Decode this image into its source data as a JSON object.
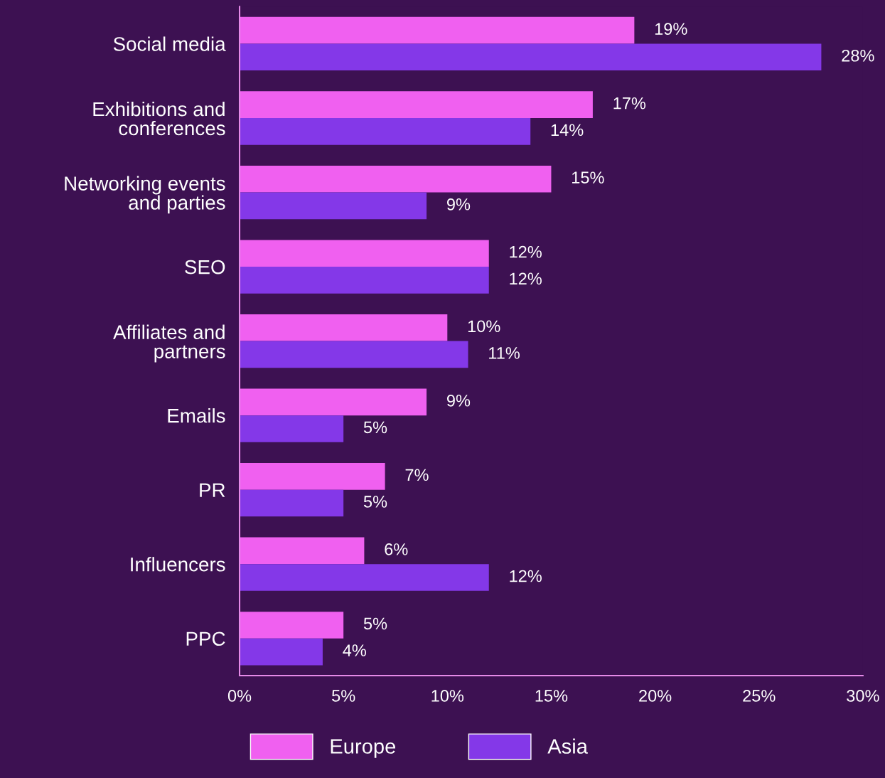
{
  "chart_data": {
    "type": "bar",
    "orientation": "horizontal",
    "categories": [
      "Social media",
      "Exhibitions and\nconferences",
      "Networking events\nand parties",
      "SEO",
      "Affiliates and\npartners",
      "Emails",
      "PR",
      "Influencers",
      "PPC"
    ],
    "series": [
      {
        "name": "Europe",
        "color": "#f060f0",
        "values": [
          19,
          17,
          15,
          12,
          10,
          9,
          7,
          6,
          5
        ],
        "value_labels": [
          "19%",
          "17%",
          "15%",
          "12%",
          "10%",
          "9%",
          "7%",
          "6%",
          "5%"
        ]
      },
      {
        "name": "Asia",
        "color": "#8438e8",
        "values": [
          28,
          14,
          9,
          12,
          11,
          5,
          5,
          12,
          4
        ],
        "value_labels": [
          "28%",
          "14%",
          "9%",
          "12%",
          "11%",
          "5%",
          "5%",
          "12%",
          "4%"
        ]
      }
    ],
    "xlim": [
      0,
      30
    ],
    "xticks": [
      {
        "value": 0,
        "label": "0%"
      },
      {
        "value": 5,
        "label": "5%"
      },
      {
        "value": 10,
        "label": "10%"
      },
      {
        "value": 15,
        "label": "15%"
      },
      {
        "value": 20,
        "label": "20%"
      },
      {
        "value": 25,
        "label": "25%"
      },
      {
        "value": 30,
        "label": "30%"
      }
    ],
    "grid": false,
    "legend": "bottom"
  }
}
